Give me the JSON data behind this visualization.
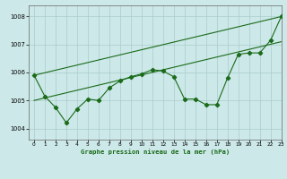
{
  "title": "Graphe pression niveau de la mer (hPa)",
  "background_color": "#cce8e8",
  "grid_color": "#aacccc",
  "line_color": "#1a6b1a",
  "xlim": [
    -0.5,
    23
  ],
  "ylim": [
    1003.6,
    1008.4
  ],
  "yticks": [
    1004,
    1005,
    1006,
    1007,
    1008
  ],
  "xticks": [
    0,
    1,
    2,
    3,
    4,
    5,
    6,
    7,
    8,
    9,
    10,
    11,
    12,
    13,
    14,
    15,
    16,
    17,
    18,
    19,
    20,
    21,
    22,
    23
  ],
  "series": [
    {
      "x": [
        0,
        1,
        2,
        3,
        4,
        5,
        6,
        7,
        8,
        9,
        10,
        11,
        12,
        13,
        14,
        15,
        16,
        17,
        18,
        19,
        20,
        21,
        22,
        23
      ],
      "y": [
        1005.9,
        1005.15,
        1004.75,
        1004.2,
        1004.7,
        1005.05,
        1005.0,
        1005.45,
        1005.7,
        1005.85,
        1005.95,
        1006.1,
        1006.05,
        1005.85,
        1005.05,
        1005.05,
        1004.85,
        1004.85,
        1005.8,
        1006.65,
        1006.7,
        1006.7,
        1007.15,
        1008.0
      ],
      "marker": "D",
      "markersize": 2.2,
      "linewidth": 0.8
    },
    {
      "x": [
        0,
        23
      ],
      "y": [
        1005.9,
        1008.0
      ],
      "marker": null,
      "linewidth": 0.8
    },
    {
      "x": [
        0,
        23
      ],
      "y": [
        1005.0,
        1007.1
      ],
      "marker": null,
      "linewidth": 0.8
    }
  ]
}
